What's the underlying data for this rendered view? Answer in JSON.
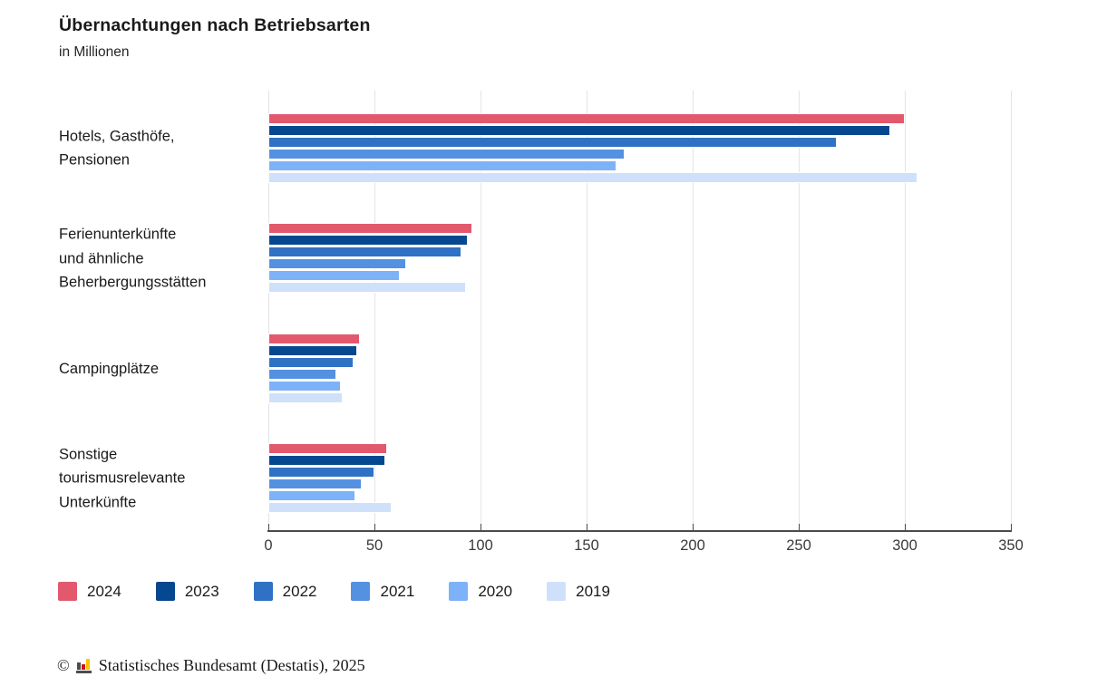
{
  "header": {
    "title": "Übernachtungen nach Betriebsarten",
    "subtitle": "in Millionen"
  },
  "chart_data": {
    "type": "bar",
    "orientation": "horizontal",
    "title": "Übernachtungen nach Betriebsarten",
    "subtitle": "in Millionen",
    "unit": "Millionen",
    "xlim": [
      0,
      350
    ],
    "xticks": [
      0,
      50,
      100,
      150,
      200,
      250,
      300,
      350
    ],
    "grid": true,
    "legend_position": "bottom",
    "categories": [
      {
        "label": "Hotels, Gasthöfe, Pensionen",
        "lines": [
          "Hotels, Gasthöfe,",
          "Pensionen"
        ]
      },
      {
        "label": "Ferienunterkünfte und ähnliche Beherbergungsstätten",
        "lines": [
          "Ferienunterkünfte",
          "und ähnliche",
          "Beherbergungsstätten"
        ]
      },
      {
        "label": "Campingplätze",
        "lines": [
          "Campingplätze"
        ]
      },
      {
        "label": "Sonstige tourismusrelevante Unterkünfte",
        "lines": [
          "Sonstige",
          "tourismusrelevante",
          "Unterkünfte"
        ]
      }
    ],
    "series": [
      {
        "name": "2024",
        "color": "#e2596e",
        "values": [
          300,
          96,
          43,
          56
        ]
      },
      {
        "name": "2023",
        "color": "#06488f",
        "values": [
          293,
          94,
          42,
          55
        ]
      },
      {
        "name": "2022",
        "color": "#2e71c5",
        "values": [
          268,
          91,
          40,
          50
        ]
      },
      {
        "name": "2021",
        "color": "#5591e1",
        "values": [
          168,
          65,
          32,
          44
        ]
      },
      {
        "name": "2020",
        "color": "#7eb2f8",
        "values": [
          164,
          62,
          34,
          41
        ]
      },
      {
        "name": "2019",
        "color": "#cfe0fa",
        "values": [
          306,
          93,
          35,
          58
        ]
      }
    ]
  },
  "footer": {
    "copyright": "©",
    "logo": "destatis-bars-icon",
    "source": "Statistisches Bundesamt (Destatis), 2025"
  }
}
